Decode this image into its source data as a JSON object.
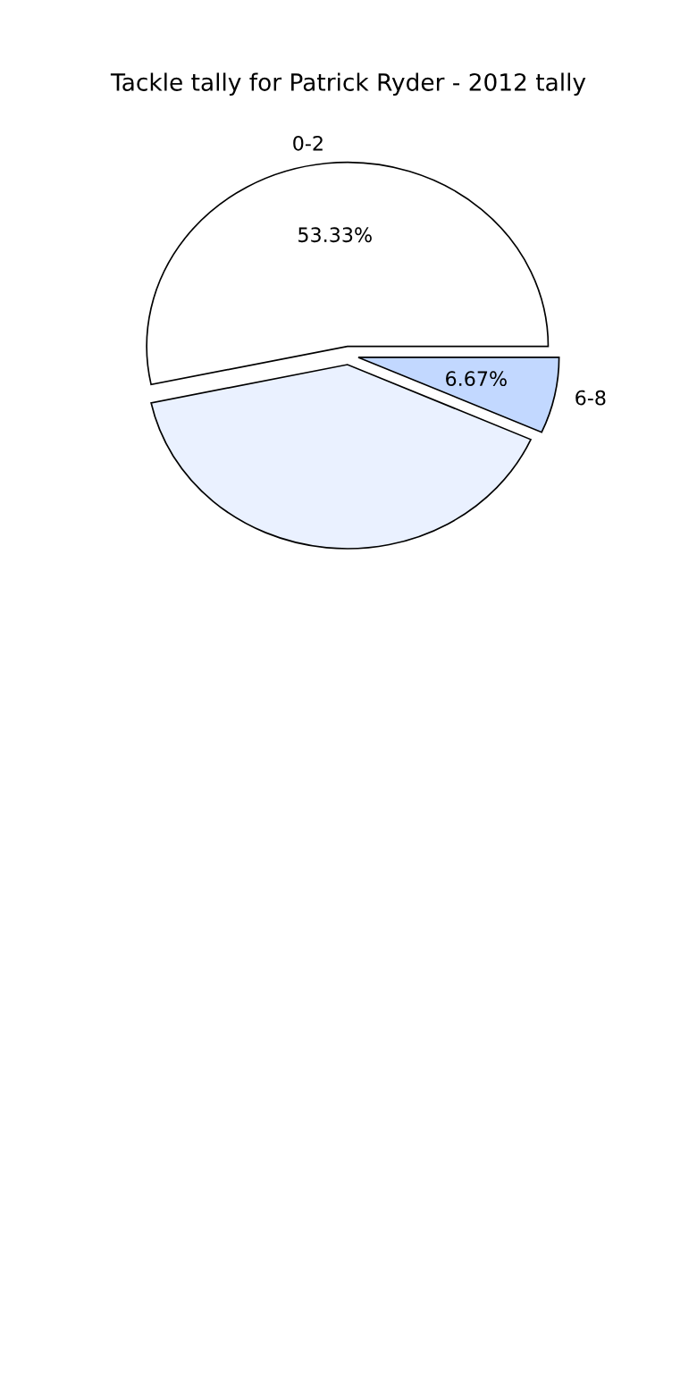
{
  "chart_data": {
    "type": "pie",
    "title": "Tackle tally for Patrick Ryder - 2012 tally",
    "categories": [
      "0-2",
      null,
      "6-8"
    ],
    "values": [
      53.33,
      40,
      6.67
    ],
    "colors": [
      "#ffffff",
      "#eaf1ff",
      "#c2d8ff"
    ],
    "value_labels": [
      "53.33%",
      null,
      "6.67%"
    ],
    "legend": false
  }
}
